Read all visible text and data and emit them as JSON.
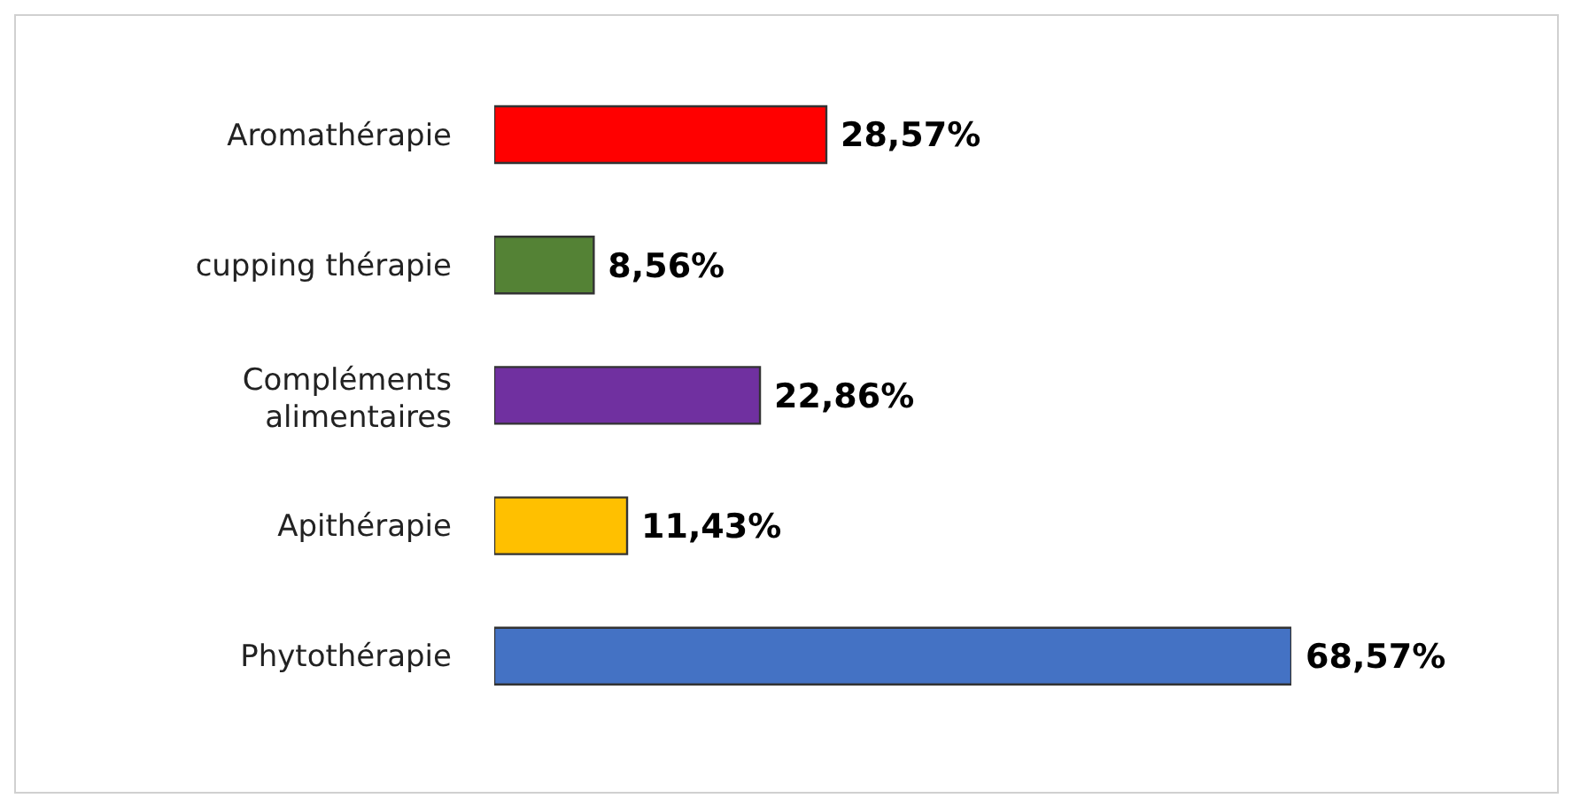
{
  "chart_data": {
    "type": "bar",
    "orientation": "horizontal",
    "categories": [
      "Aromathérapie",
      "cupping thérapie",
      "Compléments alimentaires",
      "Apithérapie",
      "Phytothérapie"
    ],
    "values": [
      28.57,
      8.56,
      22.86,
      11.43,
      68.57
    ],
    "colors": [
      "#ff0000",
      "#548235",
      "#7030a0",
      "#ffc000",
      "#4472c4"
    ],
    "value_labels": [
      "28,57%",
      "8,56%",
      "22,86%",
      "11,43%",
      "68,57%"
    ],
    "tick_labels": "y",
    "legend": false
  }
}
